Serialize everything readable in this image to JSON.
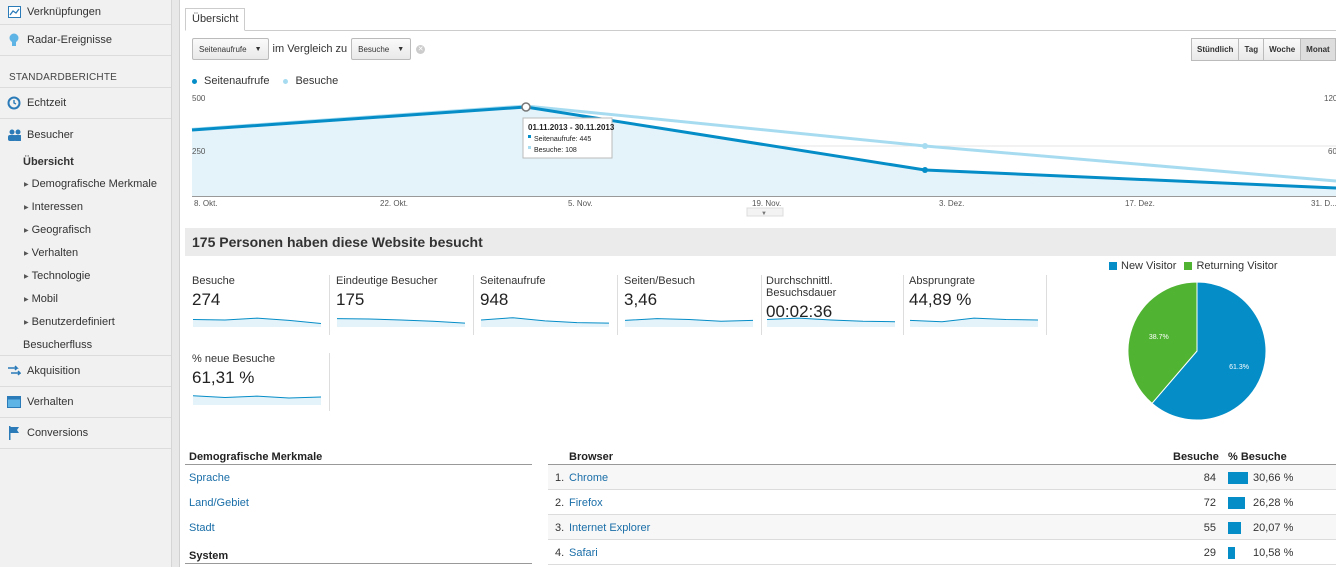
{
  "sidebar": {
    "top_items": [
      {
        "label": "Verknüpfungen",
        "icon": "shortcut-icon"
      },
      {
        "label": "Radar-Ereignisse",
        "icon": "lightbulb-icon"
      }
    ],
    "section_heading": "STANDARDBERICHTE",
    "echtzeit": "Echtzeit",
    "besucher": "Besucher",
    "active_sub": "Übersicht",
    "sub_items": [
      "Demografische Merkmale",
      "Interessen",
      "Geografisch",
      "Verhalten",
      "Technologie",
      "Mobil",
      "Benutzerdefiniert"
    ],
    "besucherfluss": "Besucherfluss",
    "bottom_items": [
      "Akquisition",
      "Verhalten",
      "Conversions"
    ]
  },
  "tab": "Übersicht",
  "controls": {
    "metric_select": "Seitenaufrufe",
    "compare_text": "im Vergleich zu",
    "compare_select": "Besuche",
    "range_buttons": [
      "Stündlich",
      "Tag",
      "Woche",
      "Monat"
    ],
    "active_range": "Monat"
  },
  "legend": {
    "series1": "Seitenaufrufe",
    "series2": "Besuche"
  },
  "chart_data": {
    "type": "line",
    "x": [
      "01.10.2013",
      "01.11.2013",
      "01.12.2013",
      "01.01.2014"
    ],
    "xtick_labels": [
      "8. Okt.",
      "22. Okt.",
      "5. Nov.",
      "19. Nov.",
      "3. Dez.",
      "17. Dez.",
      "31. D..."
    ],
    "y_left_ticks": [
      "500",
      "250"
    ],
    "y_right_ticks": [
      "120",
      "60"
    ],
    "series": [
      {
        "name": "Seitenaufrufe",
        "values": [
          330,
          445,
          130,
          40
        ],
        "color": "#058dc7"
      },
      {
        "name": "Besuche",
        "values": [
          80,
          108,
          60,
          18
        ],
        "color": "#a7dcf0"
      }
    ],
    "tooltip": {
      "date": "01.11.2013 - 30.11.2013",
      "line1": "Seitenaufrufe: 445",
      "line2": "Besuche: 108"
    }
  },
  "headline": "175 Personen haben diese Website besucht",
  "metrics": [
    {
      "label": "Besuche",
      "value": "274"
    },
    {
      "label": "Eindeutige Besucher",
      "value": "175"
    },
    {
      "label": "Seitenaufrufe",
      "value": "948"
    },
    {
      "label": "Seiten/Besuch",
      "value": "3,46"
    },
    {
      "label": "Durchschnittl. Besuchsdauer",
      "value": "00:02:36"
    },
    {
      "label": "Absprungrate",
      "value": "44,89 %"
    },
    {
      "label": "% neue Besuche",
      "value": "61,31 %"
    }
  ],
  "pie": {
    "legend": [
      "New Visitor",
      "Returning Visitor"
    ],
    "values": [
      61.3,
      38.7
    ],
    "labels": [
      "61.3%",
      "38.7%"
    ],
    "colors": [
      "#058dc7",
      "#50b432"
    ]
  },
  "demografie": {
    "heading": "Demografische Merkmale",
    "links": [
      "Sprache",
      "Land/Gebiet",
      "Stadt"
    ],
    "system_heading": "System"
  },
  "browser": {
    "col_browser": "Browser",
    "col_besuche": "Besuche",
    "col_pct": "% Besuche",
    "rows": [
      {
        "rank": "1.",
        "name": "Chrome",
        "visits": "84",
        "pct": "30,66 %",
        "share": 30.66
      },
      {
        "rank": "2.",
        "name": "Firefox",
        "visits": "72",
        "pct": "26,28 %",
        "share": 26.28
      },
      {
        "rank": "3.",
        "name": "Internet Explorer",
        "visits": "55",
        "pct": "20,07 %",
        "share": 20.07
      },
      {
        "rank": "4.",
        "name": "Safari",
        "visits": "29",
        "pct": "10,58 %",
        "share": 10.58
      }
    ]
  }
}
